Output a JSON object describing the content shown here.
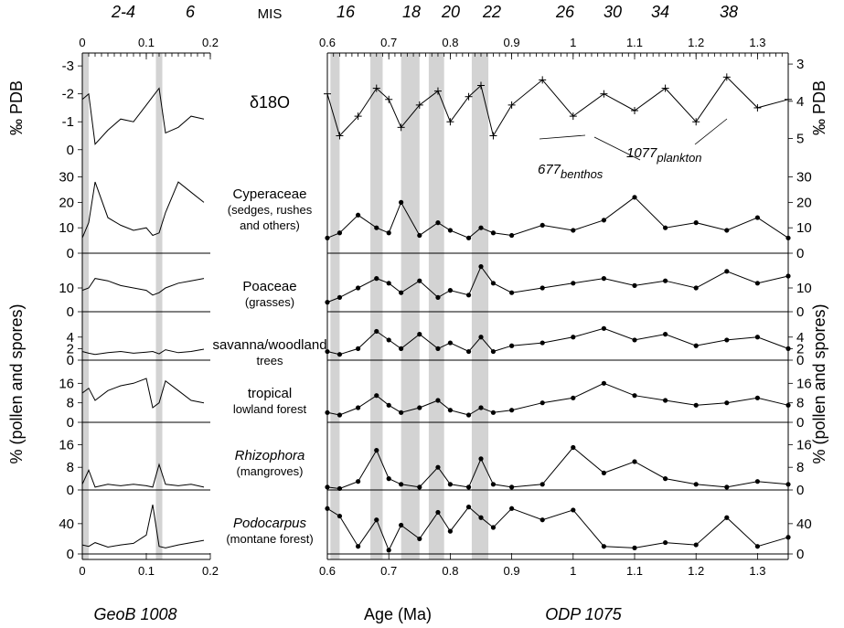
{
  "header": {
    "mis_label": "MIS",
    "mis_left": [
      "2-4",
      "6"
    ],
    "mis_right": [
      "16",
      "18",
      "20",
      "22",
      "26",
      "30",
      "34",
      "38"
    ]
  },
  "footer": {
    "left_site": "GeoB 1008",
    "xlabel": "Age (Ma)",
    "right_site": "ODP 1075"
  },
  "side_labels": {
    "left_top": "‰ PDB",
    "left_bottom": "% (pollen and spores)",
    "right_top": "‰ PDB",
    "right_bottom": "% (pollen and spores)"
  },
  "annotations": {
    "benthos": "677",
    "benthos_sub": "benthos",
    "plankton": "1077",
    "plankton_sub": "plankton"
  },
  "chart_data": [
    {
      "type": "line",
      "panel": "left",
      "xlim": [
        0,
        0.2
      ],
      "xticks": [
        "0",
        "0.1",
        "0.2"
      ],
      "shaded_intervals": [
        [
          0.0,
          0.01
        ],
        [
          0.115,
          0.125
        ]
      ],
      "series": [
        {
          "name": "δ18O",
          "label": "δ18O",
          "ylim": [
            0.4,
            -3.2
          ],
          "yticks": [
            "-3",
            "-2",
            "-1",
            "0"
          ],
          "x": [
            0,
            0.01,
            0.02,
            0.04,
            0.06,
            0.08,
            0.1,
            0.11,
            0.12,
            0.13,
            0.15,
            0.17,
            0.19
          ],
          "y": [
            -1.8,
            -2.0,
            -0.2,
            -0.7,
            -1.1,
            -1.0,
            -1.6,
            -1.9,
            -2.2,
            -0.6,
            -0.8,
            -1.2,
            -1.1
          ]
        },
        {
          "name": "Cyperaceae",
          "label": "Cyperaceae",
          "label2": "(sedges, rushes",
          "label3": "and others)",
          "ylim": [
            0,
            32
          ],
          "yticks": [
            "0",
            "10",
            "20",
            "30"
          ],
          "x": [
            0,
            0.01,
            0.02,
            0.04,
            0.06,
            0.08,
            0.1,
            0.11,
            0.12,
            0.13,
            0.15,
            0.17,
            0.19
          ],
          "y": [
            6,
            12,
            28,
            14,
            11,
            9,
            10,
            7,
            8,
            16,
            28,
            24,
            20
          ]
        },
        {
          "name": "Poaceae",
          "label": "Poaceae",
          "label2": "(grasses)",
          "ylim": [
            0,
            20
          ],
          "yticks": [
            "0",
            "10"
          ],
          "x": [
            0,
            0.01,
            0.02,
            0.04,
            0.06,
            0.08,
            0.1,
            0.11,
            0.12,
            0.13,
            0.15,
            0.17,
            0.19
          ],
          "y": [
            9,
            10,
            14,
            13,
            11,
            10,
            9,
            7,
            8,
            10,
            12,
            13,
            14
          ]
        },
        {
          "name": "savanna/woodland trees",
          "label": "savanna/woodland",
          "label2": "trees",
          "ylim": [
            0,
            6.5
          ],
          "yticks": [
            "0",
            "2",
            "4"
          ],
          "x": [
            0,
            0.01,
            0.02,
            0.04,
            0.06,
            0.08,
            0.1,
            0.11,
            0.12,
            0.13,
            0.15,
            0.17,
            0.19
          ],
          "y": [
            1.5,
            1.2,
            1.0,
            1.3,
            1.5,
            1.2,
            1.4,
            1.5,
            1.1,
            1.8,
            1.3,
            1.5,
            1.9
          ]
        },
        {
          "name": "tropical lowland forest",
          "label": "tropical",
          "label2": "lowland forest",
          "ylim": [
            0,
            21
          ],
          "yticks": [
            "0",
            "8",
            "16"
          ],
          "x": [
            0,
            0.01,
            0.02,
            0.04,
            0.06,
            0.08,
            0.1,
            0.11,
            0.12,
            0.13,
            0.15,
            0.17,
            0.19
          ],
          "y": [
            12,
            14,
            9,
            13,
            15,
            16,
            18,
            6,
            8,
            17,
            13,
            9,
            8
          ]
        },
        {
          "name": "Rhizophora",
          "label": "Rhizophora",
          "label2": "(mangroves)",
          "ylim": [
            0,
            20
          ],
          "yticks": [
            "0",
            "8",
            "16"
          ],
          "x": [
            0,
            0.01,
            0.02,
            0.04,
            0.06,
            0.08,
            0.1,
            0.11,
            0.12,
            0.13,
            0.15,
            0.17,
            0.19
          ],
          "y": [
            2,
            7,
            1,
            2,
            1.5,
            2,
            1.5,
            1,
            9,
            2,
            1.5,
            2,
            1
          ]
        },
        {
          "name": "Podocarpus",
          "label": "Podocarpus",
          "label2": "(montane forest)",
          "ylim": [
            0,
            70
          ],
          "yticks": [
            "0",
            "40"
          ],
          "x": [
            0,
            0.01,
            0.02,
            0.04,
            0.06,
            0.08,
            0.1,
            0.11,
            0.12,
            0.13,
            0.15,
            0.17,
            0.19
          ],
          "y": [
            12,
            10,
            15,
            9,
            12,
            14,
            25,
            65,
            10,
            8,
            12,
            15,
            18
          ]
        }
      ]
    },
    {
      "type": "line",
      "panel": "right",
      "xlim": [
        0.6,
        1.35
      ],
      "xticks": [
        "0.6",
        "0.7",
        "0.8",
        "0.9",
        "1",
        "1.1",
        "1.2",
        "1.3"
      ],
      "shaded_intervals": [
        [
          0.605,
          0.62
        ],
        [
          0.67,
          0.69
        ],
        [
          0.72,
          0.75
        ],
        [
          0.765,
          0.79
        ],
        [
          0.835,
          0.862
        ]
      ],
      "right_axis_d18o": {
        "ylim": [
          5.6,
          2.9
        ],
        "yticks": [
          "3",
          "4",
          "5"
        ]
      },
      "series": [
        {
          "name": "δ18O",
          "ylim": [
            0.4,
            -3.2
          ],
          "x": [
            0.6,
            0.62,
            0.65,
            0.68,
            0.7,
            0.72,
            0.75,
            0.78,
            0.8,
            0.83,
            0.85,
            0.87,
            0.9,
            0.95,
            1.0,
            1.05,
            1.1,
            1.15,
            1.2,
            1.25,
            1.3,
            1.35
          ],
          "y": [
            -2,
            -0.5,
            -1.2,
            -2.2,
            -1.8,
            -0.8,
            -1.6,
            -2.1,
            -1.0,
            -1.9,
            -2.3,
            -0.5,
            -1.6,
            -2.5,
            -1.2,
            -2.0,
            -1.4,
            -2.2,
            -1.0,
            -2.6,
            -1.5,
            -1.8
          ]
        },
        {
          "name": "Cyperaceae",
          "ylim": [
            0,
            32
          ],
          "x": [
            0.6,
            0.62,
            0.65,
            0.68,
            0.7,
            0.72,
            0.75,
            0.78,
            0.8,
            0.83,
            0.85,
            0.87,
            0.9,
            0.95,
            1.0,
            1.05,
            1.1,
            1.15,
            1.2,
            1.25,
            1.3,
            1.35
          ],
          "y": [
            6,
            8,
            15,
            10,
            8,
            20,
            7,
            12,
            9,
            6,
            10,
            8,
            7,
            11,
            9,
            13,
            22,
            10,
            12,
            9,
            14,
            6
          ]
        },
        {
          "name": "Poaceae",
          "ylim": [
            0,
            20
          ],
          "x": [
            0.6,
            0.62,
            0.65,
            0.68,
            0.7,
            0.72,
            0.75,
            0.78,
            0.8,
            0.83,
            0.85,
            0.87,
            0.9,
            0.95,
            1.0,
            1.05,
            1.1,
            1.15,
            1.2,
            1.25,
            1.3,
            1.35
          ],
          "y": [
            4,
            6,
            10,
            14,
            12,
            8,
            13,
            6,
            9,
            7,
            19,
            12,
            8,
            10,
            12,
            14,
            11,
            13,
            10,
            17,
            12,
            15
          ]
        },
        {
          "name": "savanna/woodland trees",
          "ylim": [
            0,
            6.5
          ],
          "x": [
            0.6,
            0.62,
            0.65,
            0.68,
            0.7,
            0.72,
            0.75,
            0.78,
            0.8,
            0.83,
            0.85,
            0.87,
            0.9,
            0.95,
            1.0,
            1.05,
            1.1,
            1.15,
            1.2,
            1.25,
            1.3,
            1.35
          ],
          "y": [
            1.5,
            1,
            2,
            5,
            3.5,
            2,
            4.5,
            2,
            3,
            1.5,
            4,
            1.5,
            2.5,
            3,
            4,
            5.5,
            3.5,
            4.5,
            2.5,
            3.5,
            4,
            2
          ]
        },
        {
          "name": "tropical lowland forest",
          "ylim": [
            0,
            21
          ],
          "x": [
            0.6,
            0.62,
            0.65,
            0.68,
            0.7,
            0.72,
            0.75,
            0.78,
            0.8,
            0.83,
            0.85,
            0.87,
            0.9,
            0.95,
            1.0,
            1.05,
            1.1,
            1.15,
            1.2,
            1.25,
            1.3,
            1.35
          ],
          "y": [
            4,
            3,
            6,
            11,
            7,
            4,
            6,
            9,
            5,
            3,
            6,
            4,
            5,
            8,
            10,
            16,
            11,
            9,
            7,
            8,
            10,
            7
          ]
        },
        {
          "name": "Rhizophora",
          "ylim": [
            0,
            20
          ],
          "x": [
            0.6,
            0.62,
            0.65,
            0.68,
            0.7,
            0.72,
            0.75,
            0.78,
            0.8,
            0.83,
            0.85,
            0.87,
            0.9,
            0.95,
            1.0,
            1.05,
            1.1,
            1.15,
            1.2,
            1.25,
            1.3,
            1.35
          ],
          "y": [
            1,
            0.5,
            3,
            14,
            4,
            2,
            1,
            8,
            2,
            1,
            11,
            2,
            1,
            2,
            15,
            6,
            10,
            4,
            2,
            1,
            3,
            2
          ]
        },
        {
          "name": "Podocarpus",
          "ylim": [
            0,
            70
          ],
          "x": [
            0.6,
            0.62,
            0.65,
            0.68,
            0.7,
            0.72,
            0.75,
            0.78,
            0.8,
            0.83,
            0.85,
            0.87,
            0.9,
            0.95,
            1.0,
            1.05,
            1.1,
            1.15,
            1.2,
            1.25,
            1.3,
            1.35
          ],
          "y": [
            60,
            50,
            10,
            45,
            5,
            38,
            20,
            55,
            30,
            62,
            48,
            35,
            60,
            45,
            58,
            10,
            8,
            15,
            12,
            48,
            10,
            22
          ]
        }
      ]
    }
  ]
}
